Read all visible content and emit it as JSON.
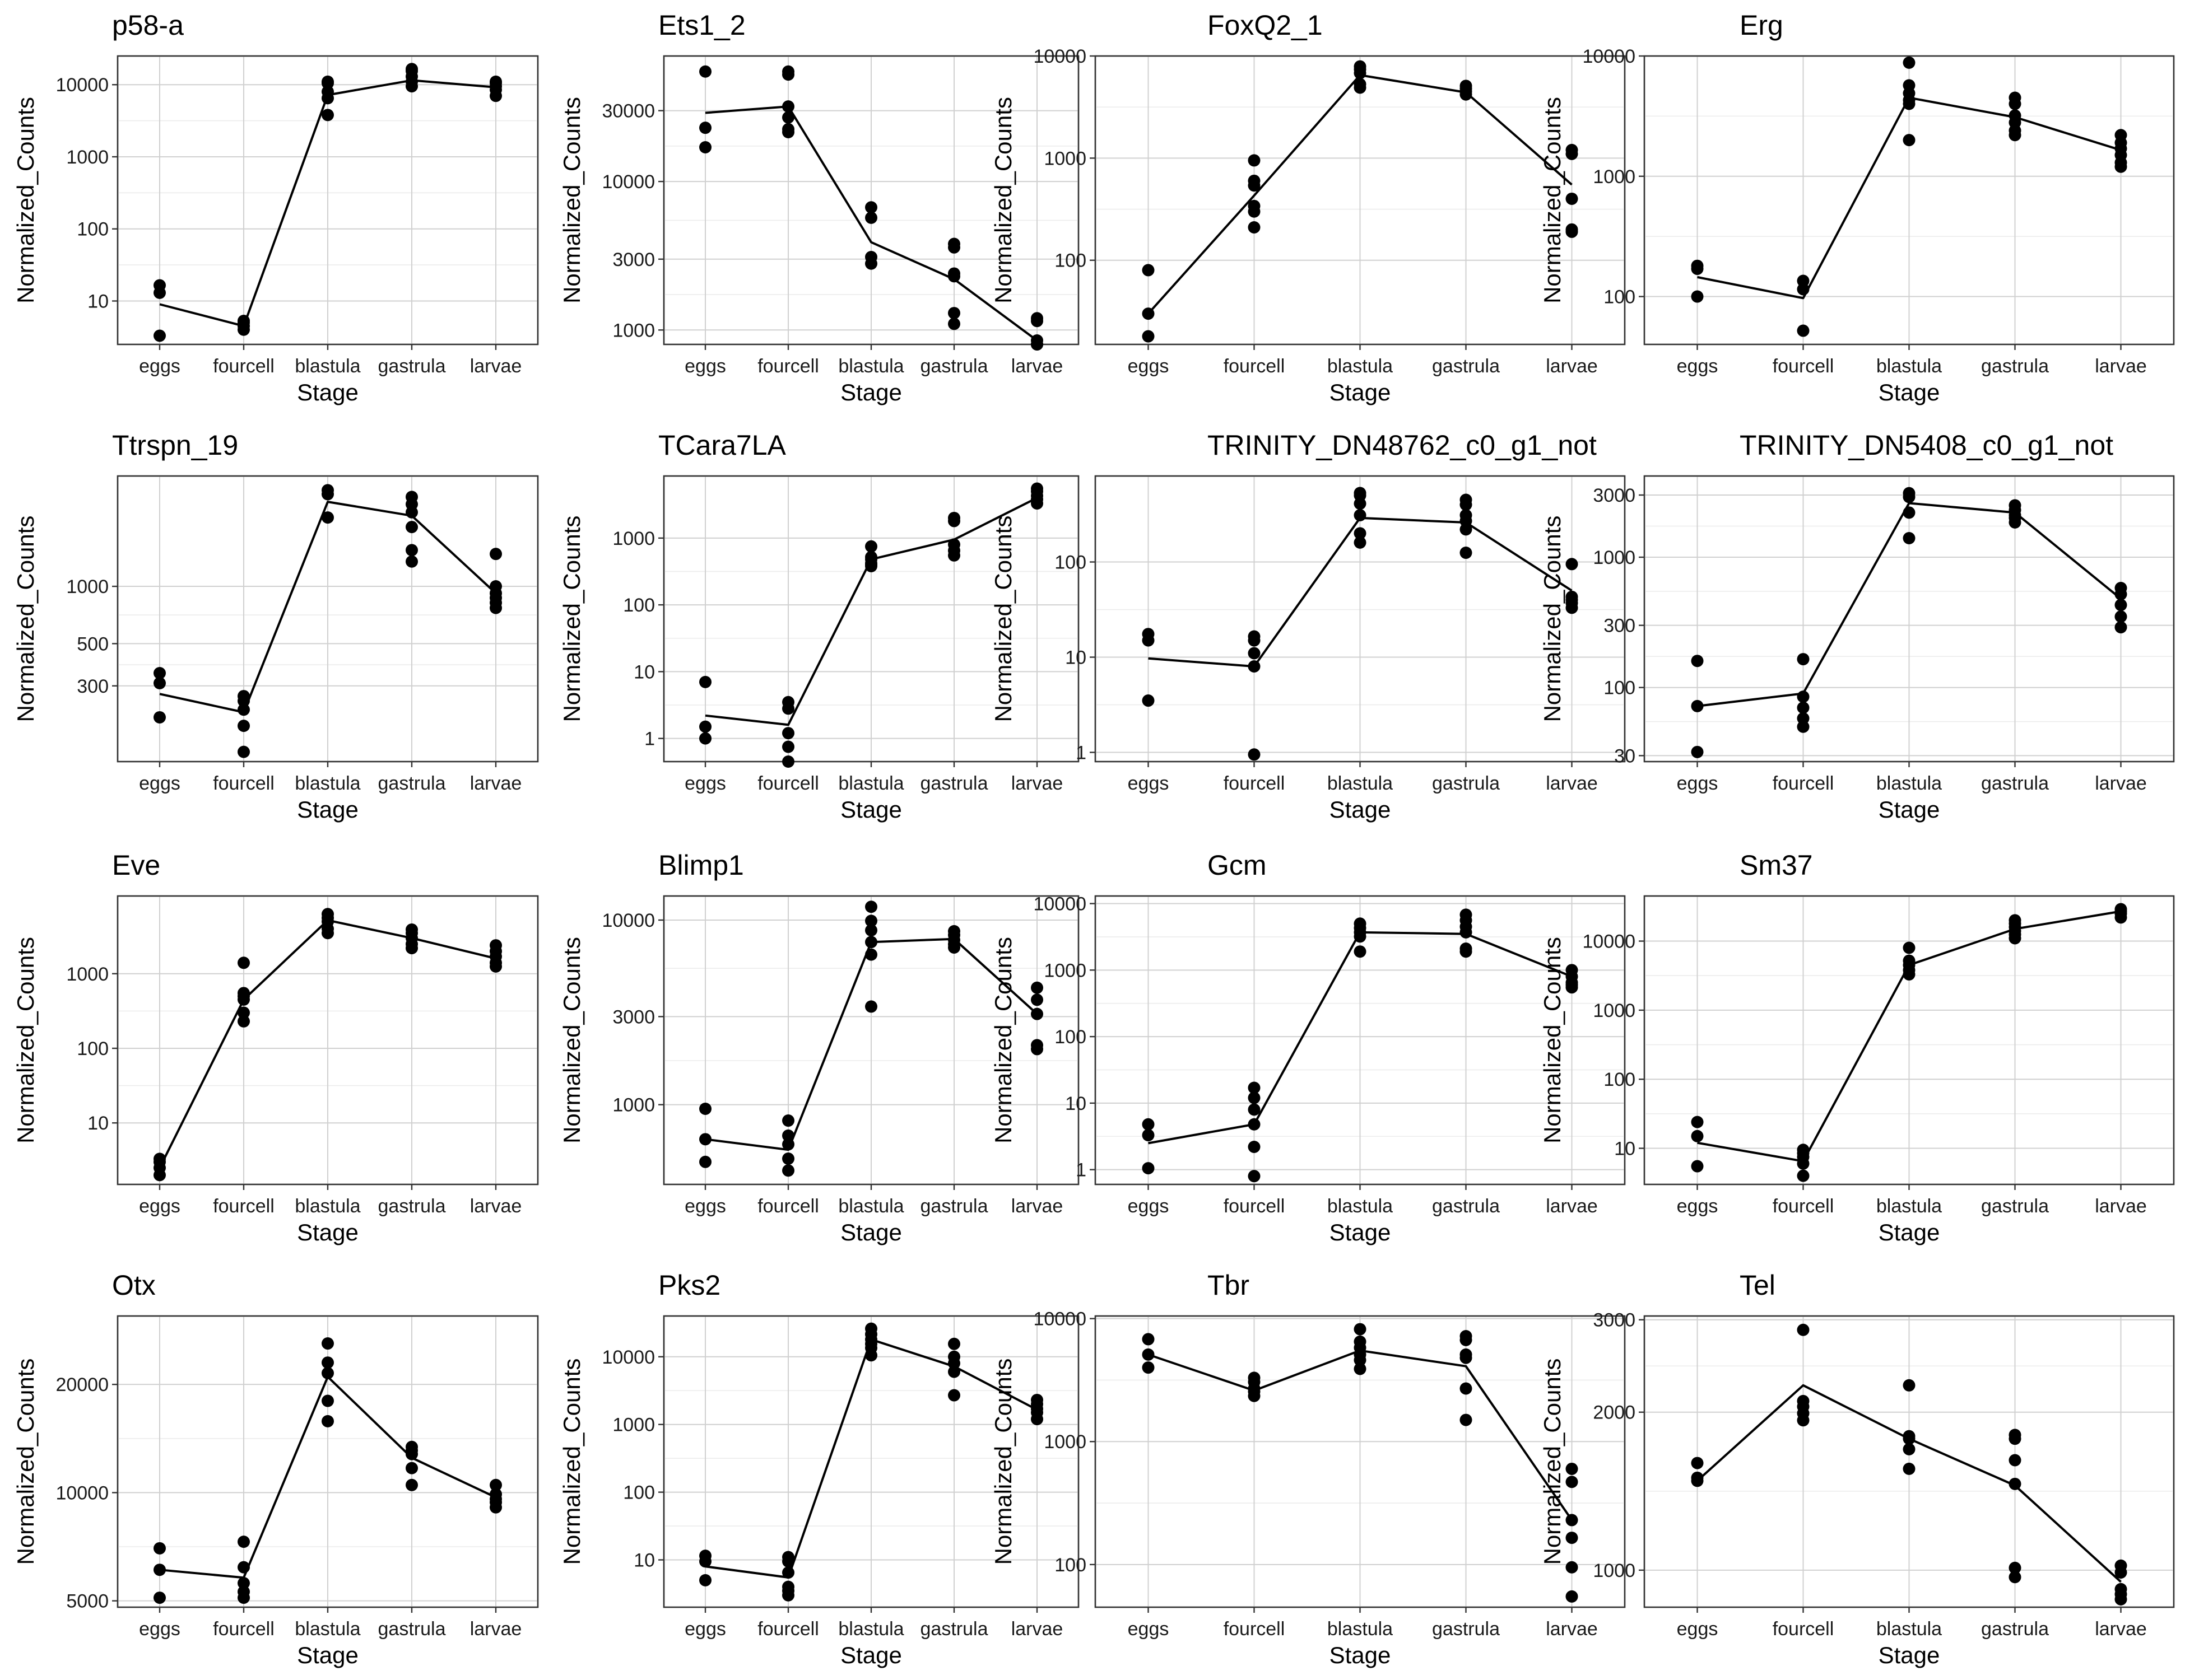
{
  "chart_data": [
    {
      "type": "scatter",
      "title": "p58-a",
      "xlabel": "Stage",
      "ylabel": "Normalized_Counts",
      "yscale": "log",
      "ylim": [
        2.5,
        25000
      ],
      "yticks": [
        10,
        100,
        1000,
        10000
      ],
      "ytick_labels": [
        "10",
        "100",
        "1000",
        "10000"
      ],
      "categories": [
        "eggs",
        "fourcell",
        "blastula",
        "gastrula",
        "larvae"
      ],
      "points": [
        [
          3.3,
          13,
          16.5
        ],
        [
          4,
          4.5,
          5,
          5.3
        ],
        [
          3800,
          6500,
          8000,
          10500,
          11000
        ],
        [
          9500,
          11000,
          13000,
          15500,
          16500
        ],
        [
          7000,
          8500,
          9500,
          10500,
          11000
        ]
      ],
      "trend": [
        9,
        4.5,
        7200,
        11500,
        9200
      ]
    },
    {
      "type": "scatter",
      "title": "Ets1_2",
      "xlabel": "Stage",
      "ylabel": "Normalized_Counts",
      "yscale": "log",
      "ylim": [
        800,
        70000
      ],
      "yticks": [
        1000,
        3000,
        10000,
        30000
      ],
      "ytick_labels": [
        "1000",
        "3000",
        "10000",
        "30000"
      ],
      "categories": [
        "eggs",
        "fourcell",
        "blastula",
        "gastrula",
        "larvae"
      ],
      "points": [
        [
          17000,
          23000,
          55000
        ],
        [
          21500,
          22500,
          27000,
          32000,
          52500,
          55000
        ],
        [
          2800,
          3100,
          5700,
          6700
        ],
        [
          1100,
          1300,
          2300,
          2400,
          3600,
          3800
        ],
        [
          700,
          800,
          850,
          1150,
          1200
        ]
      ],
      "trend": [
        29000,
        32000,
        3900,
        2200,
        850
      ]
    },
    {
      "type": "scatter",
      "title": "FoxQ2_1",
      "xlabel": "Stage",
      "ylabel": "Normalized_Counts",
      "yscale": "log",
      "ylim": [
        15,
        10000
      ],
      "yticks": [
        100,
        1000,
        10000
      ],
      "ytick_labels": [
        "100",
        "1000",
        "10000"
      ],
      "categories": [
        "eggs",
        "fourcell",
        "blastula",
        "gastrula",
        "larvae"
      ],
      "points": [
        [
          18,
          30,
          80
        ],
        [
          210,
          300,
          340,
          540,
          600,
          950
        ],
        [
          4900,
          5300,
          6800,
          7400,
          7900
        ],
        [
          4200,
          4500,
          4800,
          5100
        ],
        [
          190,
          200,
          400,
          1100,
          1200
        ]
      ],
      "trend": [
        30,
        430,
        6500,
        4400,
        550
      ]
    },
    {
      "type": "scatter",
      "title": "Erg",
      "xlabel": "Stage",
      "ylabel": "Normalized_Counts",
      "yscale": "log",
      "ylim": [
        40,
        10000
      ],
      "yticks": [
        100,
        1000,
        10000
      ],
      "ytick_labels": [
        "100",
        "1000",
        "10000"
      ],
      "categories": [
        "eggs",
        "fourcell",
        "blastula",
        "gastrula",
        "larvae"
      ],
      "points": [
        [
          100,
          170,
          180
        ],
        [
          52,
          115,
          135
        ],
        [
          2000,
          4000,
          4300,
          4900,
          5700,
          8800
        ],
        [
          2200,
          2400,
          2800,
          3200,
          4000,
          4500
        ],
        [
          1200,
          1300,
          1500,
          1700,
          1900,
          2200
        ]
      ],
      "trend": [
        145,
        97,
        4500,
        3100,
        1650
      ]
    },
    {
      "type": "scatter",
      "title": "Ttrspn_19",
      "xlabel": "Stage",
      "ylabel": "Normalized_Counts",
      "yscale": "log",
      "ylim": [
        120,
        3800
      ],
      "yticks": [
        300,
        500,
        1000
      ],
      "ytick_labels": [
        "300",
        "500",
        "1000"
      ],
      "categories": [
        "eggs",
        "fourcell",
        "blastula",
        "gastrula",
        "larvae"
      ],
      "points": [
        [
          205,
          310,
          350
        ],
        [
          135,
          185,
          225,
          250,
          265
        ],
        [
          2300,
          3050,
          3200
        ],
        [
          1350,
          1550,
          2050,
          2450,
          2700,
          2950
        ],
        [
          770,
          820,
          870,
          920,
          1000,
          1480
        ]
      ],
      "trend": [
        272,
        218,
        2780,
        2350,
        920
      ]
    },
    {
      "type": "scatter",
      "title": "TCara7LA",
      "xlabel": "Stage",
      "ylabel": "Normalized_Counts",
      "yscale": "log",
      "ylim": [
        0.45,
        8500
      ],
      "yticks": [
        1,
        10,
        100,
        1000
      ],
      "ytick_labels": [
        "1",
        "10",
        "100",
        "1000"
      ],
      "categories": [
        "eggs",
        "fourcell",
        "blastula",
        "gastrula",
        "larvae"
      ],
      "points": [
        [
          1,
          1.5,
          7
        ],
        [
          0.45,
          0.75,
          1.2,
          2.8,
          3.5
        ],
        [
          380,
          400,
          420,
          480,
          520,
          750
        ],
        [
          550,
          650,
          800,
          1800,
          2000
        ],
        [
          3300,
          3800,
          4300,
          5000,
          5500
        ]
      ],
      "trend": [
        2.2,
        1.6,
        480,
        950,
        4000
      ]
    },
    {
      "type": "scatter",
      "title": "TRINITY_DN48762_c0_g1_not",
      "xlabel": "Stage",
      "ylabel": "Normalized_Counts",
      "yscale": "log",
      "ylim": [
        0.8,
        800
      ],
      "yticks": [
        1,
        10,
        100
      ],
      "ytick_labels": [
        "1",
        "10",
        "100"
      ],
      "categories": [
        "eggs",
        "fourcell",
        "blastula",
        "gastrula",
        "larvae"
      ],
      "points": [
        [
          3.5,
          15,
          17.5
        ],
        [
          0.95,
          8,
          11,
          15,
          16.5
        ],
        [
          160,
          200,
          310,
          410,
          500,
          530
        ],
        [
          125,
          220,
          270,
          310,
          400,
          450
        ],
        [
          33,
          37,
          40,
          43,
          95
        ]
      ],
      "trend": [
        9.7,
        8,
        290,
        260,
        50
      ]
    },
    {
      "type": "scatter",
      "title": "TRINITY_DN5408_c0_g1_not",
      "xlabel": "Stage",
      "ylabel": "Normalized_Counts",
      "yscale": "log",
      "ylim": [
        27,
        4200
      ],
      "yticks": [
        30,
        100,
        300,
        1000,
        3000
      ],
      "ytick_labels": [
        "30",
        "100",
        "300",
        "1000",
        "3000"
      ],
      "categories": [
        "eggs",
        "fourcell",
        "blastula",
        "gastrula",
        "larvae"
      ],
      "points": [
        [
          32,
          72,
          160
        ],
        [
          50,
          58,
          70,
          85,
          165
        ],
        [
          1400,
          2200,
          2900,
          3100
        ],
        [
          1850,
          2000,
          2100,
          2300,
          2500
        ],
        [
          290,
          350,
          430,
          520,
          580
        ]
      ],
      "trend": [
        72,
        90,
        2600,
        2200,
        480
      ]
    },
    {
      "type": "scatter",
      "title": "Eve",
      "xlabel": "Stage",
      "ylabel": "Normalized_Counts",
      "yscale": "log",
      "ylim": [
        1.5,
        11000
      ],
      "yticks": [
        10,
        100,
        1000
      ],
      "ytick_labels": [
        "10",
        "100",
        "1000"
      ],
      "categories": [
        "eggs",
        "fourcell",
        "blastula",
        "gastrula",
        "larvae"
      ],
      "points": [
        [
          2,
          2.5,
          3,
          3.3
        ],
        [
          230,
          300,
          450,
          500,
          550,
          1400
        ],
        [
          3500,
          4000,
          5000,
          5600,
          6300
        ],
        [
          2200,
          2500,
          3000,
          3500,
          3900
        ],
        [
          1250,
          1400,
          1700,
          2000,
          2400
        ]
      ],
      "trend": [
        2.5,
        450,
        5200,
        3000,
        1600
      ]
    },
    {
      "type": "scatter",
      "title": "Blimp1",
      "xlabel": "Stage",
      "ylabel": "Normalized_Counts",
      "yscale": "log",
      "ylim": [
        370,
        13500
      ],
      "yticks": [
        1000,
        3000,
        10000
      ],
      "ytick_labels": [
        "1000",
        "3000",
        "10000"
      ],
      "categories": [
        "eggs",
        "fourcell",
        "blastula",
        "gastrula",
        "larvae"
      ],
      "points": [
        [
          490,
          650,
          950
        ],
        [
          440,
          510,
          610,
          680,
          820
        ],
        [
          3400,
          6500,
          7600,
          8800,
          9900,
          11800
        ],
        [
          7100,
          7400,
          7800,
          8300,
          8700
        ],
        [
          2000,
          2100,
          3100,
          3700,
          4300
        ]
      ],
      "trend": [
        650,
        570,
        7600,
        7900,
        3100
      ]
    },
    {
      "type": "scatter",
      "title": "Gcm",
      "xlabel": "Stage",
      "ylabel": "Normalized_Counts",
      "yscale": "log",
      "ylim": [
        0.6,
        13000
      ],
      "yticks": [
        1,
        10,
        100,
        1000,
        10000
      ],
      "ytick_labels": [
        "1",
        "10",
        "100",
        "1000",
        "10000"
      ],
      "categories": [
        "eggs",
        "fourcell",
        "blastula",
        "gastrula",
        "larvae"
      ],
      "points": [
        [
          1.05,
          3.3,
          4.8
        ],
        [
          0.8,
          2.2,
          4.8,
          8,
          12,
          17
        ],
        [
          1900,
          3200,
          3700,
          4300,
          5000
        ],
        [
          1900,
          2100,
          3700,
          4500,
          5600,
          6800
        ],
        [
          550,
          600,
          650,
          800,
          1000
        ]
      ],
      "trend": [
        2.5,
        4.8,
        3700,
        3500,
        800
      ]
    },
    {
      "type": "scatter",
      "title": "Sm37",
      "xlabel": "Stage",
      "ylabel": "Normalized_Counts",
      "yscale": "log",
      "ylim": [
        3,
        45000
      ],
      "yticks": [
        10,
        100,
        1000,
        10000
      ],
      "ytick_labels": [
        "10",
        "100",
        "1000",
        "10000"
      ],
      "categories": [
        "eggs",
        "fourcell",
        "blastula",
        "gastrula",
        "larvae"
      ],
      "points": [
        [
          5.5,
          15,
          24
        ],
        [
          4,
          6,
          7.5,
          8.5,
          9.5
        ],
        [
          3300,
          3800,
          4500,
          5200,
          8000
        ],
        [
          11000,
          12500,
          14000,
          16000,
          18000,
          20000
        ],
        [
          22000,
          25000,
          27000,
          29000
        ]
      ],
      "trend": [
        12,
        6.5,
        4500,
        15000,
        27000
      ]
    },
    {
      "type": "scatter",
      "title": "Otx",
      "xlabel": "Stage",
      "ylabel": "Normalized_Counts",
      "yscale": "log",
      "ylim": [
        4800,
        31000
      ],
      "yticks": [
        5000,
        10000,
        20000
      ],
      "ytick_labels": [
        "5000",
        "10000",
        "20000"
      ],
      "categories": [
        "eggs",
        "fourcell",
        "blastula",
        "gastrula",
        "larvae"
      ],
      "points": [
        [
          5100,
          6100,
          7000
        ],
        [
          5100,
          5300,
          5600,
          6200,
          7300
        ],
        [
          15800,
          18000,
          21500,
          23000,
          26000
        ],
        [
          10500,
          11700,
          12800,
          13100,
          13400
        ],
        [
          9100,
          9400,
          9600,
          9900,
          10500
        ]
      ],
      "trend": [
        6100,
        5800,
        21000,
        12500,
        9700
      ]
    },
    {
      "type": "scatter",
      "title": "Pks2",
      "xlabel": "Stage",
      "ylabel": "Normalized_Counts",
      "yscale": "log",
      "ylim": [
        2,
        40000
      ],
      "yticks": [
        10,
        100,
        1000,
        10000
      ],
      "ytick_labels": [
        "10",
        "100",
        "1000",
        "10000"
      ],
      "categories": [
        "eggs",
        "fourcell",
        "blastula",
        "gastrula",
        "larvae"
      ],
      "points": [
        [
          5,
          9.5,
          11.5
        ],
        [
          3,
          3.5,
          4,
          6.5,
          9.5,
          11
        ],
        [
          10500,
          13500,
          15500,
          18000,
          21500,
          26000
        ],
        [
          2700,
          6000,
          8000,
          10000,
          15500
        ],
        [
          1200,
          1500,
          1700,
          2000,
          2300
        ]
      ],
      "trend": [
        8,
        5.5,
        18000,
        7200,
        1650
      ]
    },
    {
      "type": "scatter",
      "title": "Tbr",
      "xlabel": "Stage",
      "ylabel": "Normalized_Counts",
      "yscale": "log",
      "ylim": [
        45,
        10500
      ],
      "yticks": [
        100,
        1000,
        10000
      ],
      "ytick_labels": [
        "100",
        "1000",
        "10000"
      ],
      "categories": [
        "eggs",
        "fourcell",
        "blastula",
        "gastrula",
        "larvae"
      ],
      "points": [
        [
          4000,
          5100,
          6800
        ],
        [
          2350,
          2550,
          2700,
          3050,
          3300
        ],
        [
          3900,
          4600,
          5100,
          5800,
          6500,
          8200
        ],
        [
          1500,
          2700,
          4800,
          5100,
          6700,
          7200
        ],
        [
          55,
          95,
          165,
          230,
          470,
          600
        ]
      ],
      "trend": [
        5100,
        2600,
        5500,
        4100,
        230
      ]
    },
    {
      "type": "scatter",
      "title": "Tel",
      "xlabel": "Stage",
      "ylabel": "Normalized_Counts",
      "yscale": "log",
      "ylim": [
        850,
        3050
      ],
      "yticks": [
        1000,
        2000,
        3000
      ],
      "ytick_labels": [
        "1000",
        "2000",
        "3000"
      ],
      "categories": [
        "eggs",
        "fourcell",
        "blastula",
        "gastrula",
        "larvae"
      ],
      "points": [
        [
          1480,
          1500,
          1600
        ],
        [
          1930,
          1990,
          2050,
          2100,
          2870
        ],
        [
          1560,
          1700,
          1780,
          1800,
          2250
        ],
        [
          970,
          1010,
          1460,
          1620,
          1780,
          1810
        ],
        [
          880,
          900,
          920,
          990,
          1020
        ]
      ],
      "trend": [
        1480,
        2250,
        1780,
        1450,
        950
      ]
    }
  ]
}
